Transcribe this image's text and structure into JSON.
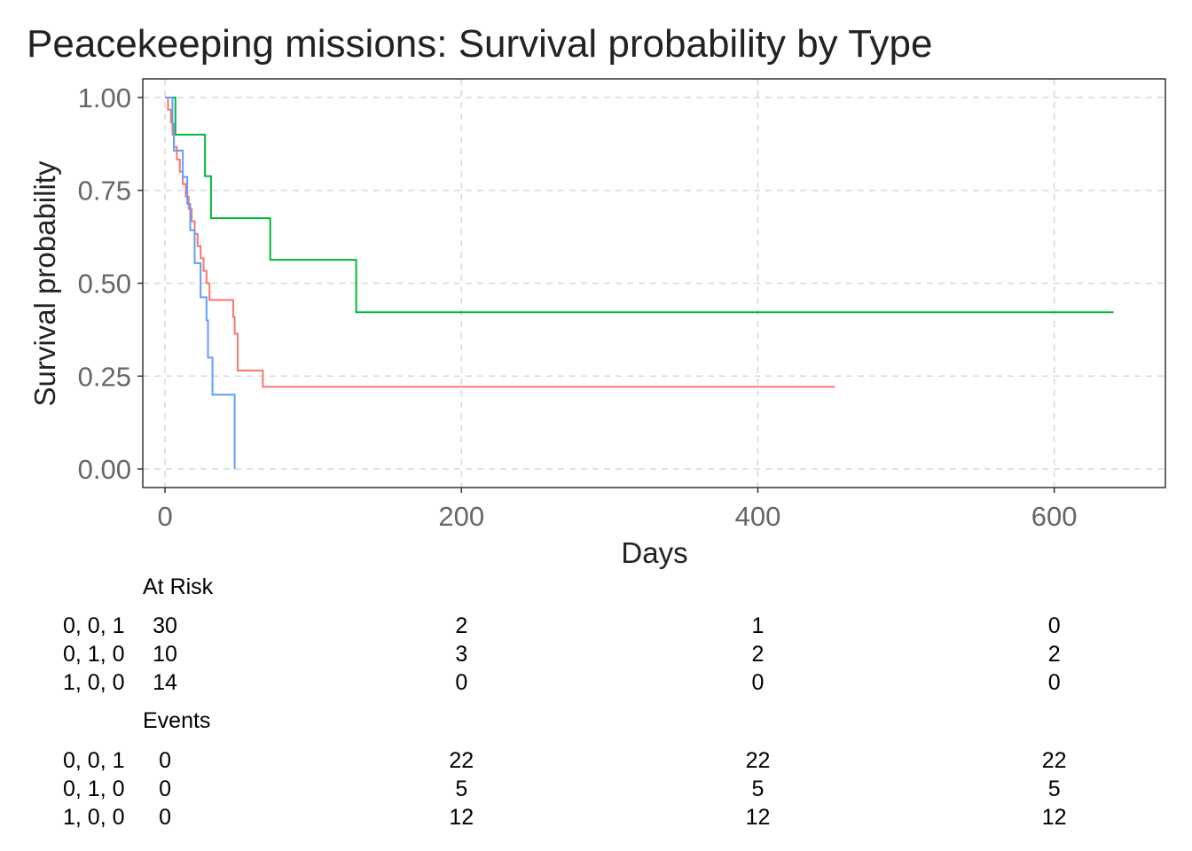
{
  "chart_data": {
    "type": "line",
    "step": true,
    "title": "Peacekeeping missions: Survival probability by Type",
    "xlabel": "Days",
    "ylabel": "Survival probability",
    "xlim": [
      -15,
      675
    ],
    "ylim": [
      -0.05,
      1.05
    ],
    "xticks": [
      0,
      200,
      400,
      600
    ],
    "yticks": [
      0,
      0.25,
      0.5,
      0.75,
      1
    ],
    "ytick_labels": [
      "0.00",
      "0.25",
      "0.50",
      "0.75",
      "1.00"
    ],
    "grid": true,
    "series": [
      {
        "strata": "0, 0, 1",
        "color": "#f8766d",
        "x": [
          0,
          2,
          4,
          5,
          6,
          8,
          10,
          12,
          14,
          16,
          18,
          20,
          22,
          24,
          26,
          28,
          30,
          46,
          47,
          49,
          66,
          452
        ],
        "y": [
          1.0,
          0.967,
          0.933,
          0.9,
          0.867,
          0.833,
          0.8,
          0.767,
          0.733,
          0.7,
          0.667,
          0.633,
          0.6,
          0.567,
          0.533,
          0.5,
          0.455,
          0.409,
          0.364,
          0.265,
          0.221,
          0.221
        ]
      },
      {
        "strata": "0, 1, 0",
        "color": "#00ba38",
        "x": [
          0,
          7,
          27,
          31,
          71,
          129,
          640
        ],
        "y": [
          1.0,
          0.9,
          0.788,
          0.675,
          0.563,
          0.422,
          0.422
        ]
      },
      {
        "strata": "1, 0, 0",
        "color": "#619cff",
        "x": [
          0,
          5,
          6,
          7,
          8,
          12,
          15,
          17,
          20,
          24,
          28,
          29,
          32,
          47
        ],
        "y": [
          1.0,
          0.929,
          0.857,
          0.857,
          0.857,
          0.786,
          0.714,
          0.643,
          0.554,
          0.462,
          0.4,
          0.3,
          0.2,
          0.1
        ]
      }
    ],
    "vertical_drop_to_zero": {
      "series": "1, 0, 0",
      "x": 47
    },
    "at_risk": {
      "header": "At Risk",
      "times": [
        0,
        200,
        400,
        600
      ],
      "rows": [
        {
          "label": "0, 0, 1",
          "values": [
            "30",
            "2",
            "1",
            "0"
          ]
        },
        {
          "label": "0, 1, 0",
          "values": [
            "10",
            "3",
            "2",
            "2"
          ]
        },
        {
          "label": "1, 0, 0",
          "values": [
            "14",
            "0",
            "0",
            "0"
          ]
        }
      ]
    },
    "events": {
      "header": "Events",
      "times": [
        0,
        200,
        400,
        600
      ],
      "rows": [
        {
          "label": "0, 0, 1",
          "values": [
            "0",
            "22",
            "22",
            "22"
          ]
        },
        {
          "label": "0, 1, 0",
          "values": [
            "0",
            "5",
            "5",
            "5"
          ]
        },
        {
          "label": "1, 0, 0",
          "values": [
            "0",
            "12",
            "12",
            "12"
          ]
        }
      ]
    }
  }
}
